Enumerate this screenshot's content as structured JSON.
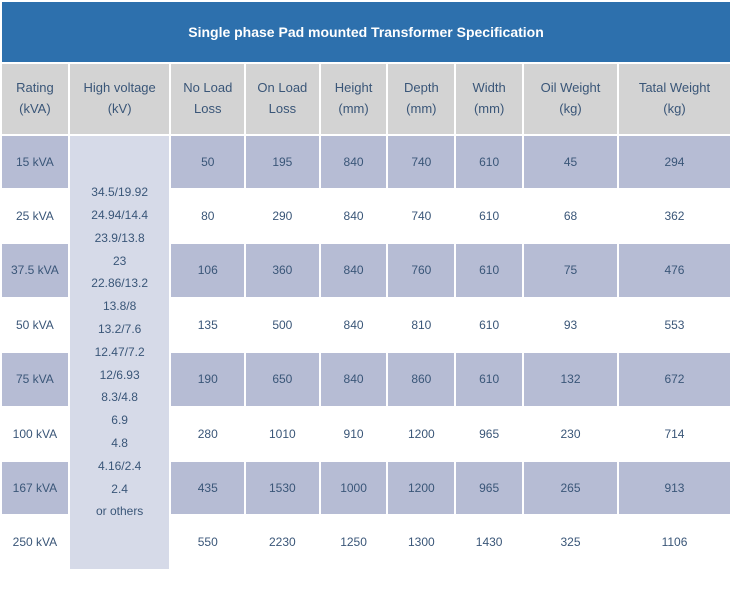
{
  "title": "Single phase Pad mounted Transformer Specification",
  "title_bg": "#2d70ad",
  "title_color": "#ffffff",
  "header_bg": "#d3d3d3",
  "text_color": "#3a5678",
  "row_odd_bg": "#b6bcd4",
  "row_even_bg": "#ffffff",
  "hv_cell_bg": "#d6dae8",
  "columns": [
    {
      "key": "rating",
      "l1": "Rating",
      "l2": "(kVA)",
      "width": 60
    },
    {
      "key": "hv",
      "l1": "High voltage",
      "l2": "(kV)",
      "width": 90
    },
    {
      "key": "nl",
      "l1": "No Load",
      "l2": "Loss",
      "width": 66
    },
    {
      "key": "ol",
      "l1": "On Load",
      "l2": "Loss",
      "width": 66
    },
    {
      "key": "h",
      "l1": "Height",
      "l2": "(mm)",
      "width": 60
    },
    {
      "key": "d",
      "l1": "Depth",
      "l2": "(mm)",
      "width": 60
    },
    {
      "key": "w",
      "l1": "Width",
      "l2": "(mm)",
      "width": 60
    },
    {
      "key": "oil",
      "l1": "Oil Weight",
      "l2": "(kg)",
      "width": 84
    },
    {
      "key": "tot",
      "l1": "Tatal Weight",
      "l2": "(kg)",
      "width": 100
    }
  ],
  "hv_values": [
    "34.5/19.92",
    "24.94/14.4",
    "23.9/13.8",
    "23",
    "22.86/13.2",
    "13.8/8",
    "13.2/7.6",
    "12.47/7.2",
    "12/6.93",
    "8.3/4.8",
    "6.9",
    "4.8",
    "4.16/2.4",
    "2.4",
    "or others"
  ],
  "rows": [
    {
      "rating": "15 kVA",
      "nl": "50",
      "ol": "195",
      "h": "840",
      "d": "740",
      "w": "610",
      "oil": "45",
      "tot": "294"
    },
    {
      "rating": "25 kVA",
      "nl": "80",
      "ol": "290",
      "h": "840",
      "d": "740",
      "w": "610",
      "oil": "68",
      "tot": "362"
    },
    {
      "rating": "37.5 kVA",
      "nl": "106",
      "ol": "360",
      "h": "840",
      "d": "760",
      "w": "610",
      "oil": "75",
      "tot": "476"
    },
    {
      "rating": "50 kVA",
      "nl": "135",
      "ol": "500",
      "h": "840",
      "d": "810",
      "w": "610",
      "oil": "93",
      "tot": "553"
    },
    {
      "rating": "75 kVA",
      "nl": "190",
      "ol": "650",
      "h": "840",
      "d": "860",
      "w": "610",
      "oil": "132",
      "tot": "672"
    },
    {
      "rating": "100 kVA",
      "nl": "280",
      "ol": "1010",
      "h": "910",
      "d": "1200",
      "w": "965",
      "oil": "230",
      "tot": "714"
    },
    {
      "rating": "167 kVA",
      "nl": "435",
      "ol": "1530",
      "h": "1000",
      "d": "1200",
      "w": "965",
      "oil": "265",
      "tot": "913"
    },
    {
      "rating": "250 kVA",
      "nl": "550",
      "ol": "2230",
      "h": "1250",
      "d": "1300",
      "w": "1430",
      "oil": "325",
      "tot": "1106"
    }
  ]
}
